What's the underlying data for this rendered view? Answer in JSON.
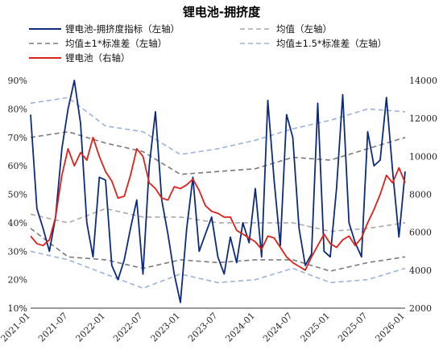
{
  "chart_data": {
    "type": "line",
    "title": "锂电池-拥挤度",
    "x_ticks": [
      "2021-01",
      "2021-07",
      "2022-01",
      "2022-07",
      "2023-01",
      "2023-07",
      "2024-01",
      "2024-07",
      "2025-01",
      "2025-07",
      "2026-01"
    ],
    "x_range": [
      "2021-01",
      "2026-01"
    ],
    "y_left": {
      "range": [
        10,
        90
      ],
      "ticks": [
        "10%",
        "20%",
        "30%",
        "40%",
        "50%",
        "60%",
        "70%",
        "80%",
        "90%"
      ]
    },
    "y_right": {
      "range": [
        2000,
        14000
      ],
      "ticks": [
        "2000",
        "4000",
        "6000",
        "8000",
        "10000",
        "12000",
        "14000"
      ]
    },
    "legend": [
      "锂电池-拥挤度指标（左轴）",
      "均值（左轴）",
      "均值±1*标准差（左轴）",
      "均值±1.5*标准差（左轴）",
      "锂电池（右轴）"
    ],
    "series": [
      {
        "name": "锂电池-拥挤度指标（左轴）",
        "axis": "left",
        "color": "#0d2a7e",
        "style": "solid",
        "x": [
          "2021-01",
          "2021-02",
          "2021-03",
          "2021-04",
          "2021-05",
          "2021-06",
          "2021-07",
          "2021-08",
          "2021-09",
          "2021-10",
          "2021-11",
          "2021-12",
          "2022-01",
          "2022-02",
          "2022-03",
          "2022-04",
          "2022-05",
          "2022-06",
          "2022-07",
          "2022-08",
          "2022-09",
          "2022-10",
          "2022-11",
          "2022-12",
          "2023-01",
          "2023-02",
          "2023-03",
          "2023-04",
          "2023-05",
          "2023-06",
          "2023-07",
          "2023-08",
          "2023-09",
          "2023-10",
          "2023-11",
          "2023-12",
          "2024-01",
          "2024-02",
          "2024-03",
          "2024-04",
          "2024-05",
          "2024-06",
          "2024-07",
          "2024-08",
          "2024-09",
          "2024-10",
          "2024-11",
          "2024-12",
          "2025-01",
          "2025-02",
          "2025-03",
          "2025-04",
          "2025-05",
          "2025-06",
          "2025-07",
          "2025-08",
          "2025-09",
          "2025-10",
          "2025-11",
          "2025-12",
          "2026-01"
        ],
        "values": [
          78,
          45,
          38,
          30,
          42,
          66,
          80,
          90,
          75,
          40,
          28,
          56,
          55,
          25,
          20,
          27,
          38,
          48,
          22,
          60,
          79,
          48,
          36,
          22,
          12,
          38,
          56,
          30,
          36,
          42,
          28,
          22,
          35,
          26,
          40,
          33,
          52,
          28,
          83,
          55,
          32,
          78,
          70,
          38,
          25,
          29,
          82,
          30,
          28,
          52,
          85,
          40,
          33,
          28,
          72,
          60,
          62,
          84,
          58,
          35,
          58
        ]
      },
      {
        "name": "均值（左轴）",
        "axis": "left",
        "color": "#a9a9a9",
        "style": "dashed",
        "x": [
          "2021-01",
          "2021-07",
          "2022-01",
          "2022-07",
          "2023-01",
          "2023-07",
          "2024-01",
          "2024-07",
          "2025-01",
          "2025-07",
          "2026-01"
        ],
        "values": [
          43,
          40,
          45,
          42,
          42,
          40,
          40,
          40,
          37,
          38,
          40
        ]
      },
      {
        "name": "均值±1*标准差（左轴）",
        "axis": "left",
        "color": "#7a7a7a",
        "style": "dashed",
        "x": [
          "2021-01",
          "2021-07",
          "2022-01",
          "2022-07",
          "2023-01",
          "2023-07",
          "2024-01",
          "2024-07",
          "2025-01",
          "2025-07",
          "2026-01"
        ],
        "upper": [
          70,
          72,
          68,
          65,
          57,
          58,
          59,
          63,
          62,
          66,
          70
        ],
        "lower": [
          38,
          28,
          27,
          24,
          27,
          26,
          27,
          27,
          23,
          26,
          28
        ]
      },
      {
        "name": "均值±1.5*标准差（左轴）",
        "axis": "left",
        "color": "#9bb3d9",
        "style": "dashed",
        "x": [
          "2021-01",
          "2021-07",
          "2022-01",
          "2022-07",
          "2023-01",
          "2023-07",
          "2024-01",
          "2024-07",
          "2025-01",
          "2025-07",
          "2026-01"
        ],
        "upper": [
          82,
          84,
          74,
          72,
          64,
          66,
          69,
          73,
          76,
          80,
          79
        ],
        "lower": [
          30,
          27,
          22,
          17,
          22,
          19,
          20,
          24,
          19,
          20,
          24
        ]
      },
      {
        "name": "锂电池（右轴）",
        "axis": "right",
        "color": "#e0201b",
        "style": "solid",
        "x": [
          "2021-01",
          "2021-02",
          "2021-03",
          "2021-04",
          "2021-05",
          "2021-06",
          "2021-07",
          "2021-08",
          "2021-09",
          "2021-10",
          "2021-11",
          "2021-12",
          "2022-01",
          "2022-02",
          "2022-03",
          "2022-04",
          "2022-05",
          "2022-06",
          "2022-07",
          "2022-08",
          "2022-09",
          "2022-10",
          "2022-11",
          "2022-12",
          "2023-01",
          "2023-02",
          "2023-03",
          "2023-04",
          "2023-05",
          "2023-06",
          "2023-07",
          "2023-08",
          "2023-09",
          "2023-10",
          "2023-11",
          "2023-12",
          "2024-01",
          "2024-02",
          "2024-03",
          "2024-04",
          "2024-05",
          "2024-06",
          "2024-07",
          "2024-08",
          "2024-09",
          "2024-10",
          "2024-11",
          "2024-12",
          "2025-01",
          "2025-02",
          "2025-03",
          "2025-04",
          "2025-05",
          "2025-06",
          "2025-07",
          "2025-08",
          "2025-09",
          "2025-10",
          "2025-11",
          "2025-12",
          "2026-01"
        ],
        "values": [
          5800,
          5400,
          5300,
          5600,
          6800,
          9000,
          10400,
          9500,
          10200,
          9800,
          11000,
          10000,
          9200,
          8700,
          7800,
          7900,
          9000,
          10400,
          10000,
          8600,
          8300,
          7800,
          7700,
          8400,
          8300,
          8500,
          8800,
          8200,
          7400,
          7100,
          7000,
          6800,
          6800,
          6100,
          5900,
          5700,
          5500,
          5100,
          5800,
          5700,
          5200,
          4700,
          4400,
          4200,
          4000,
          4700,
          5300,
          5900,
          5400,
          5200,
          5600,
          5800,
          5300,
          5700,
          6500,
          7200,
          8000,
          9000,
          8600,
          9400,
          8600
        ]
      }
    ]
  }
}
